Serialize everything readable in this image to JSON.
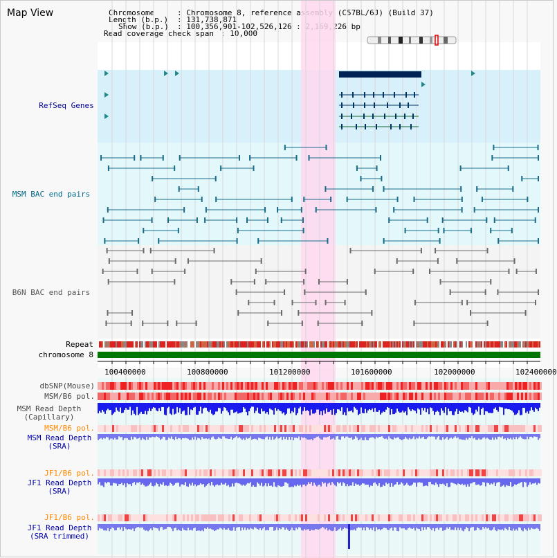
{
  "title": "Map View",
  "header": {
    "chromosome_label": "Chromosome     ",
    "chromosome_value": ": Chromosome 8, reference assembly (C57BL/6J) (Build 37)",
    "length_label": "Length (b.p.) ",
    "length_value": ": 131,738,871",
    "show_label": "Show (b.p.) ",
    "show_value": ": 100,356,901-102,526,126 : 2,169,226 bp",
    "coverage_label": "Read coverage check span",
    "coverage_value": ": 10,000"
  },
  "tracks": {
    "refseq": "RefSeq Genes",
    "msm_bac": "MSM BAC end pairs",
    "b6n_bac": "B6N BAC end pairs",
    "repeat": "Repeat",
    "chromosome": "chromosome 8",
    "dbsnp": "dbSNP(Mouse)",
    "msm_b6_pol_1": "MSM/B6 pol.",
    "msm_depth_cap": "MSM Read Depth\n(Capillary)",
    "msm_b6_pol_2": "MSM/B6 pol.",
    "msm_depth_sra": "MSM Read Depth\n(SRA)",
    "jf1_b6_pol_1": "JF1/B6 pol.",
    "jf1_depth_sra": "JF1 Read Depth\n(SRA)",
    "jf1_b6_pol_2": "JF1/B6 pol.",
    "jf1_depth_trim": "JF1 Read Depth\n(SRA trimmed)"
  },
  "axis": {
    "ticks": [
      "100400000",
      "100800000",
      "101200000",
      "101600000",
      "102000000",
      "102400000"
    ]
  },
  "colors": {
    "refseq_label": "#000099",
    "msm_label": "#006688",
    "b6n_label": "#555555",
    "pol_label": "#ff8800",
    "depth_label": "#0000aa",
    "highlight": "#ffd8f0",
    "chromosome_bar": "#007700"
  }
}
